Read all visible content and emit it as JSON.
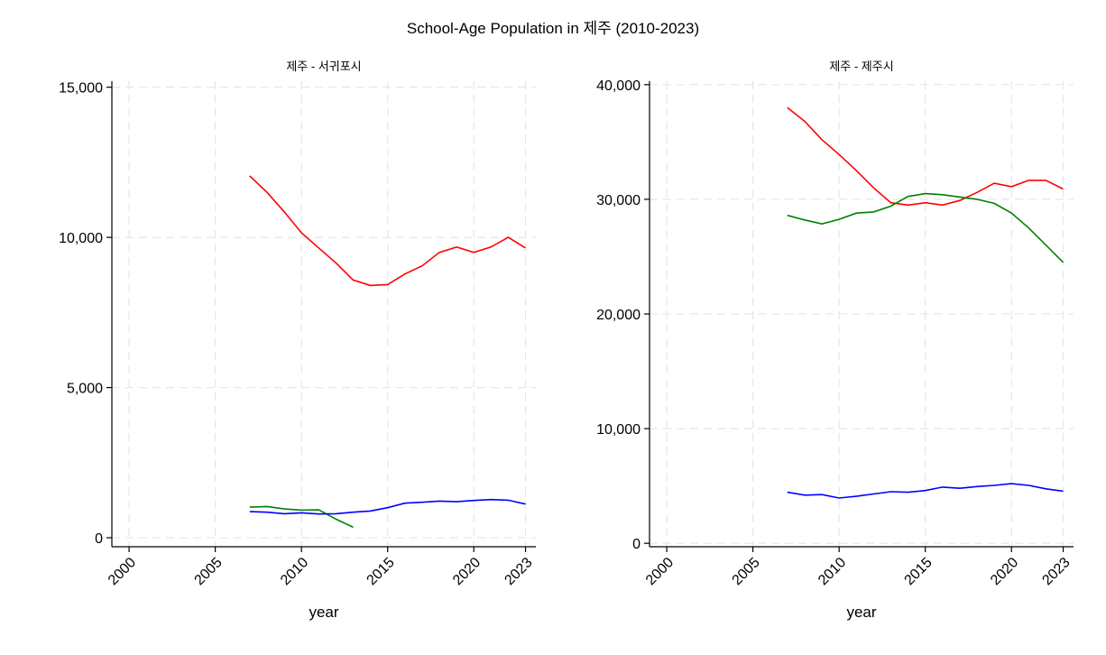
{
  "figure": {
    "title": "School-Age Population in 제주 (2010-2023)"
  },
  "chart_data": [
    {
      "type": "line",
      "title": "제주 - 서귀포시",
      "xlabel": "year",
      "ylabel": "",
      "xlim": [
        1999,
        2023.6
      ],
      "ylim": [
        -300,
        15200
      ],
      "xticks": [
        2000,
        2005,
        2010,
        2015,
        2020,
        2023
      ],
      "xtick_labels": [
        "2000",
        "2005",
        "2010",
        "2015",
        "2020",
        "2023"
      ],
      "yticks": [
        0,
        5000,
        10000,
        15000
      ],
      "ytick_labels": [
        "0",
        "5,000",
        "10,000",
        "15,000"
      ],
      "grid": true,
      "legend": "none",
      "series": [
        {
          "color": "#ff0000",
          "x": [
            2007,
            2008,
            2009,
            2010,
            2011,
            2012,
            2013,
            2014,
            2015,
            2016,
            2017,
            2018,
            2019,
            2020,
            2021,
            2022,
            2023
          ],
          "values": [
            12050,
            11500,
            10850,
            10150,
            9650,
            9150,
            8580,
            8400,
            8430,
            8780,
            9050,
            9500,
            9680,
            9500,
            9680,
            10000,
            9650
          ]
        },
        {
          "color": "#008000",
          "x": [
            2007,
            2008,
            2009,
            2010,
            2011,
            2012,
            2013
          ],
          "values": [
            1020,
            1040,
            960,
            920,
            930,
            620,
            350
          ]
        },
        {
          "color": "#0000ff",
          "x": [
            2007,
            2008,
            2009,
            2010,
            2011,
            2012,
            2013,
            2014,
            2015,
            2016,
            2017,
            2018,
            2019,
            2020,
            2021,
            2022,
            2023
          ],
          "values": [
            870,
            850,
            800,
            830,
            790,
            800,
            850,
            890,
            1000,
            1150,
            1180,
            1220,
            1200,
            1240,
            1270,
            1250,
            1120
          ]
        }
      ]
    },
    {
      "type": "line",
      "title": "제주 - 제주시",
      "xlabel": "year",
      "ylabel": "",
      "xlim": [
        1999,
        2023.6
      ],
      "ylim": [
        -300,
        40300
      ],
      "xticks": [
        2000,
        2005,
        2010,
        2015,
        2020,
        2023
      ],
      "xtick_labels": [
        "2000",
        "2005",
        "2010",
        "2015",
        "2020",
        "2023"
      ],
      "yticks": [
        0,
        10000,
        20000,
        30000,
        40000
      ],
      "ytick_labels": [
        "0",
        "10,000",
        "20,000",
        "30,000",
        "40,000"
      ],
      "grid": true,
      "legend": "none",
      "series": [
        {
          "color": "#ff0000",
          "x": [
            2007,
            2008,
            2009,
            2010,
            2011,
            2012,
            2013,
            2014,
            2015,
            2016,
            2017,
            2018,
            2019,
            2020,
            2021,
            2022,
            2023
          ],
          "values": [
            38000,
            36800,
            35200,
            33900,
            32500,
            31000,
            29700,
            29500,
            29700,
            29500,
            29900,
            30600,
            31400,
            31100,
            31650,
            31650,
            30900
          ]
        },
        {
          "color": "#008000",
          "x": [
            2007,
            2008,
            2009,
            2010,
            2011,
            2012,
            2013,
            2014,
            2015,
            2016,
            2017,
            2018,
            2019,
            2020,
            2021,
            2022,
            2023
          ],
          "values": [
            28600,
            28200,
            27850,
            28250,
            28800,
            28900,
            29400,
            30250,
            30500,
            30400,
            30200,
            30000,
            29650,
            28800,
            27500,
            26000,
            24500
          ]
        },
        {
          "color": "#0000ff",
          "x": [
            2007,
            2008,
            2009,
            2010,
            2011,
            2012,
            2013,
            2014,
            2015,
            2016,
            2017,
            2018,
            2019,
            2020,
            2021,
            2022,
            2023
          ],
          "values": [
            4450,
            4200,
            4250,
            3950,
            4100,
            4300,
            4500,
            4450,
            4600,
            4900,
            4800,
            4950,
            5050,
            5200,
            5050,
            4750,
            4550
          ]
        }
      ]
    }
  ]
}
